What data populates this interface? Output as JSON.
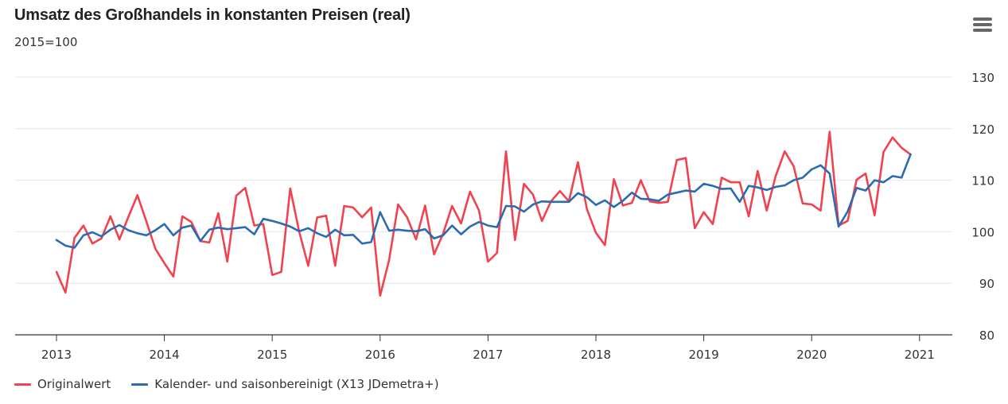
{
  "header": {
    "title": "Umsatz des Großhandels in konstanten Preisen (real)",
    "subtitle": "2015=100",
    "menu_icon": "hamburger-menu-icon"
  },
  "chart_data": {
    "type": "line",
    "title": "Umsatz des Großhandels in konstanten Preisen (real)",
    "subtitle": "2015=100",
    "xlabel": "",
    "ylabel": "",
    "x_start": "2013-01",
    "x_frequency": "monthly",
    "x_ticks": [
      "2013",
      "2014",
      "2015",
      "2016",
      "2017",
      "2018",
      "2019",
      "2020",
      "2021"
    ],
    "xlim": [
      "2012-07",
      "2021-04"
    ],
    "y_ticks": [
      80,
      90,
      100,
      110,
      120,
      130
    ],
    "ylim": [
      80,
      130
    ],
    "y_axis_side": "right",
    "grid": true,
    "legend_position": "bottom-left",
    "series": [
      {
        "name": "Originalwert",
        "color": "#f0434f",
        "values": [
          92.2,
          88.2,
          98.8,
          101.2,
          97.7,
          98.7,
          103.0,
          98.5,
          102.9,
          107.1,
          102.0,
          96.7,
          93.9,
          91.3,
          103.0,
          101.9,
          98.2,
          97.9,
          103.6,
          94.2,
          107.0,
          108.5,
          101.2,
          101.5,
          91.6,
          92.2,
          108.4,
          100.0,
          93.4,
          102.8,
          103.1,
          93.4,
          105.0,
          104.7,
          102.8,
          104.7,
          87.6,
          94.5,
          105.3,
          102.8,
          98.5,
          105.1,
          95.6,
          99.6,
          105.0,
          101.6,
          107.8,
          104.1,
          94.2,
          95.9,
          115.6,
          98.4,
          109.3,
          107.2,
          102.1,
          105.9,
          107.9,
          105.9,
          113.5,
          104.4,
          99.8,
          97.4,
          110.2,
          105.1,
          105.6,
          110.0,
          105.9,
          105.6,
          105.8,
          113.9,
          114.3,
          100.7,
          103.8,
          101.5,
          110.5,
          109.6,
          109.6,
          103.0,
          111.8,
          104.1,
          110.8,
          115.6,
          112.7,
          105.5,
          105.3,
          104.1,
          119.4,
          101.2,
          102.1,
          110.1,
          111.3,
          103.2,
          115.5,
          118.3,
          116.3,
          115.0
        ]
      },
      {
        "name": "Kalender- und saisonbereinigt (X13 JDemetra+)",
        "color": "#2b6cb0",
        "values": [
          98.4,
          97.3,
          96.9,
          99.3,
          99.9,
          99.1,
          100.4,
          101.3,
          100.3,
          99.7,
          99.3,
          100.3,
          101.5,
          99.3,
          100.8,
          101.2,
          98.2,
          100.4,
          100.8,
          100.5,
          100.7,
          100.9,
          99.5,
          102.5,
          102.1,
          101.6,
          101.0,
          100.1,
          100.7,
          99.7,
          99.0,
          100.4,
          99.3,
          99.4,
          97.7,
          98.0,
          103.8,
          100.2,
          100.4,
          100.2,
          100.1,
          100.5,
          98.7,
          99.3,
          101.2,
          99.5,
          101.0,
          101.9,
          101.2,
          100.9,
          105.0,
          104.9,
          103.9,
          105.3,
          105.9,
          105.8,
          105.8,
          105.8,
          107.5,
          106.7,
          105.2,
          106.1,
          104.8,
          106.0,
          107.6,
          106.4,
          106.3,
          106.0,
          107.2,
          107.6,
          108.0,
          107.8,
          109.3,
          108.9,
          108.3,
          108.4,
          105.8,
          108.9,
          108.6,
          108.1,
          108.7,
          109.0,
          110.0,
          110.5,
          112.1,
          112.9,
          111.3,
          101.0,
          103.9,
          108.5,
          108.0,
          110.0,
          109.6,
          110.8,
          110.5,
          115.0
        ]
      }
    ]
  },
  "legend": {
    "items": [
      {
        "label": "Originalwert",
        "color": "#f0434f"
      },
      {
        "label": "Kalender- und saisonbereinigt (X13 JDemetra+)",
        "color": "#2b6cb0"
      }
    ]
  }
}
